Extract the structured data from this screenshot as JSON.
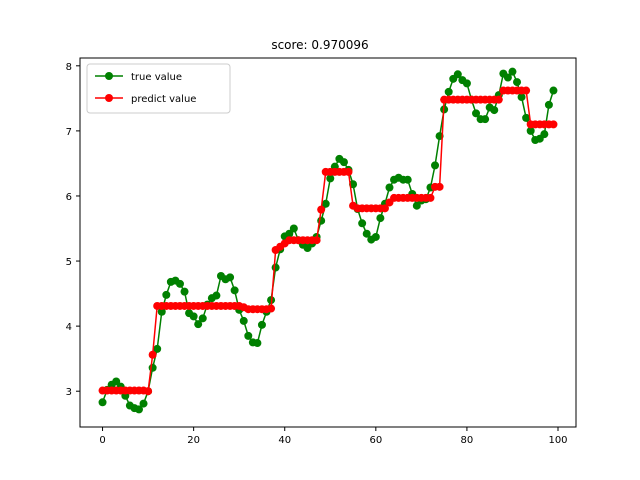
{
  "chart_data": {
    "type": "line",
    "title": "score: 0.970096",
    "xlabel": "",
    "ylabel": "",
    "xlim": [
      -4.95,
      103.95
    ],
    "ylim": [
      2.45,
      8.12
    ],
    "xticks": [
      0,
      20,
      40,
      60,
      80,
      100
    ],
    "yticks": [
      3,
      4,
      5,
      6,
      7,
      8
    ],
    "grid": false,
    "legend_position": "top-left",
    "x": [
      0,
      1,
      2,
      3,
      4,
      5,
      6,
      7,
      8,
      9,
      10,
      11,
      12,
      13,
      14,
      15,
      16,
      17,
      18,
      19,
      20,
      21,
      22,
      23,
      24,
      25,
      26,
      27,
      28,
      29,
      30,
      31,
      32,
      33,
      34,
      35,
      36,
      37,
      38,
      39,
      40,
      41,
      42,
      43,
      44,
      45,
      46,
      47,
      48,
      49,
      50,
      51,
      52,
      53,
      54,
      55,
      56,
      57,
      58,
      59,
      60,
      61,
      62,
      63,
      64,
      65,
      66,
      67,
      68,
      69,
      70,
      71,
      72,
      73,
      74,
      75,
      76,
      77,
      78,
      79,
      80,
      81,
      82,
      83,
      84,
      85,
      86,
      87,
      88,
      89,
      90,
      91,
      92,
      93,
      94,
      95,
      96,
      97,
      98,
      99
    ],
    "series": [
      {
        "name": "true value",
        "color": "#008000",
        "values": [
          2.83,
          3.02,
          3.1,
          3.15,
          3.07,
          2.93,
          2.78,
          2.74,
          2.72,
          2.81,
          3.0,
          3.36,
          3.65,
          4.22,
          4.48,
          4.68,
          4.7,
          4.65,
          4.53,
          4.2,
          4.15,
          4.03,
          4.12,
          4.33,
          4.43,
          4.47,
          4.77,
          4.72,
          4.75,
          4.55,
          4.25,
          4.08,
          3.85,
          3.75,
          3.74,
          4.02,
          4.22,
          4.4,
          4.9,
          5.18,
          5.38,
          5.42,
          5.5,
          5.32,
          5.25,
          5.2,
          5.27,
          5.37,
          5.62,
          5.88,
          6.27,
          6.45,
          6.57,
          6.52,
          6.4,
          6.18,
          5.8,
          5.58,
          5.42,
          5.33,
          5.37,
          5.66,
          5.88,
          6.13,
          6.25,
          6.28,
          6.25,
          6.25,
          6.03,
          5.85,
          5.93,
          5.95,
          6.13,
          6.47,
          6.92,
          7.33,
          7.6,
          7.8,
          7.87,
          7.78,
          7.73,
          7.48,
          7.27,
          7.18,
          7.18,
          7.36,
          7.32,
          7.55,
          7.88,
          7.82,
          7.91,
          7.75,
          7.52,
          7.2,
          7.0,
          6.86,
          6.88,
          6.95,
          7.4,
          7.62
        ]
      },
      {
        "name": "predict value",
        "color": "#ff0000",
        "values": [
          3.01,
          3.01,
          3.01,
          3.01,
          3.01,
          3.01,
          3.01,
          3.01,
          3.01,
          3.01,
          3.0,
          3.56,
          4.31,
          4.31,
          4.31,
          4.31,
          4.31,
          4.31,
          4.31,
          4.31,
          4.31,
          4.31,
          4.31,
          4.31,
          4.31,
          4.31,
          4.31,
          4.31,
          4.31,
          4.31,
          4.31,
          4.29,
          4.26,
          4.26,
          4.26,
          4.26,
          4.26,
          4.27,
          5.17,
          5.22,
          5.27,
          5.32,
          5.32,
          5.32,
          5.32,
          5.32,
          5.32,
          5.32,
          5.79,
          6.37,
          6.37,
          6.37,
          6.37,
          6.37,
          6.37,
          5.85,
          5.81,
          5.81,
          5.81,
          5.81,
          5.81,
          5.81,
          5.81,
          5.9,
          5.97,
          5.97,
          5.97,
          5.97,
          5.97,
          5.97,
          5.97,
          5.97,
          5.97,
          6.14,
          6.14,
          7.48,
          7.48,
          7.48,
          7.48,
          7.48,
          7.48,
          7.48,
          7.48,
          7.48,
          7.48,
          7.48,
          7.48,
          7.48,
          7.62,
          7.62,
          7.62,
          7.62,
          7.62,
          7.62,
          7.1,
          7.1,
          7.1,
          7.1,
          7.1,
          7.1
        ]
      }
    ]
  }
}
